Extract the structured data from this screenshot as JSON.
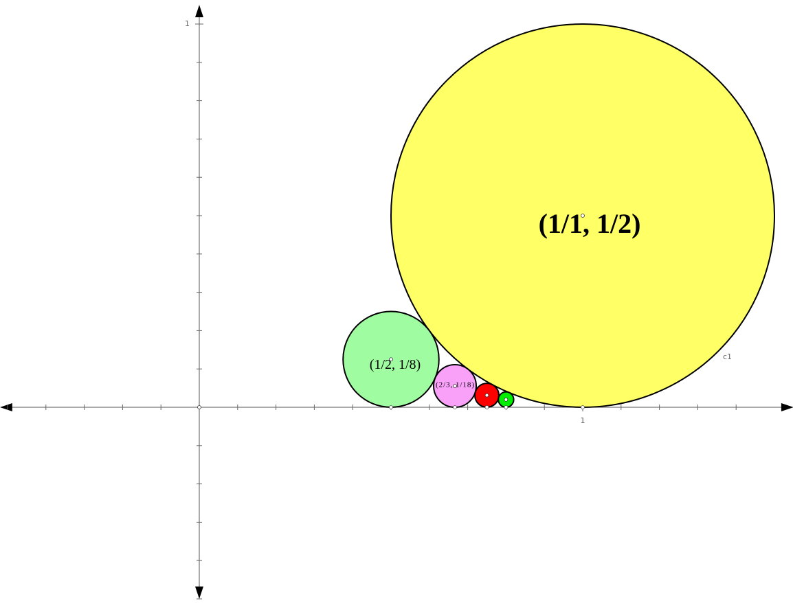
{
  "axes": {
    "xlim": [
      -0.52,
      1.55
    ],
    "ylim": [
      -0.5,
      1.05
    ],
    "minor_step": 0.1,
    "xticks": [
      1
    ],
    "yticks": [
      1
    ]
  },
  "circles": [
    {
      "p": 1,
      "q": 1,
      "color": "#ffff66",
      "label": "(1/1, 1/2)"
    },
    {
      "p": 1,
      "q": 2,
      "color": "#a0fca0",
      "label": "(1/2, 1/8)"
    },
    {
      "p": 2,
      "q": 3,
      "color": "#f9a0f9",
      "label": "(2/3, 1/18)"
    },
    {
      "p": 3,
      "q": 4,
      "color": "#ff0000"
    },
    {
      "p": 4,
      "q": 5,
      "color": "#00ee00"
    }
  ],
  "circle_name": "c1"
}
